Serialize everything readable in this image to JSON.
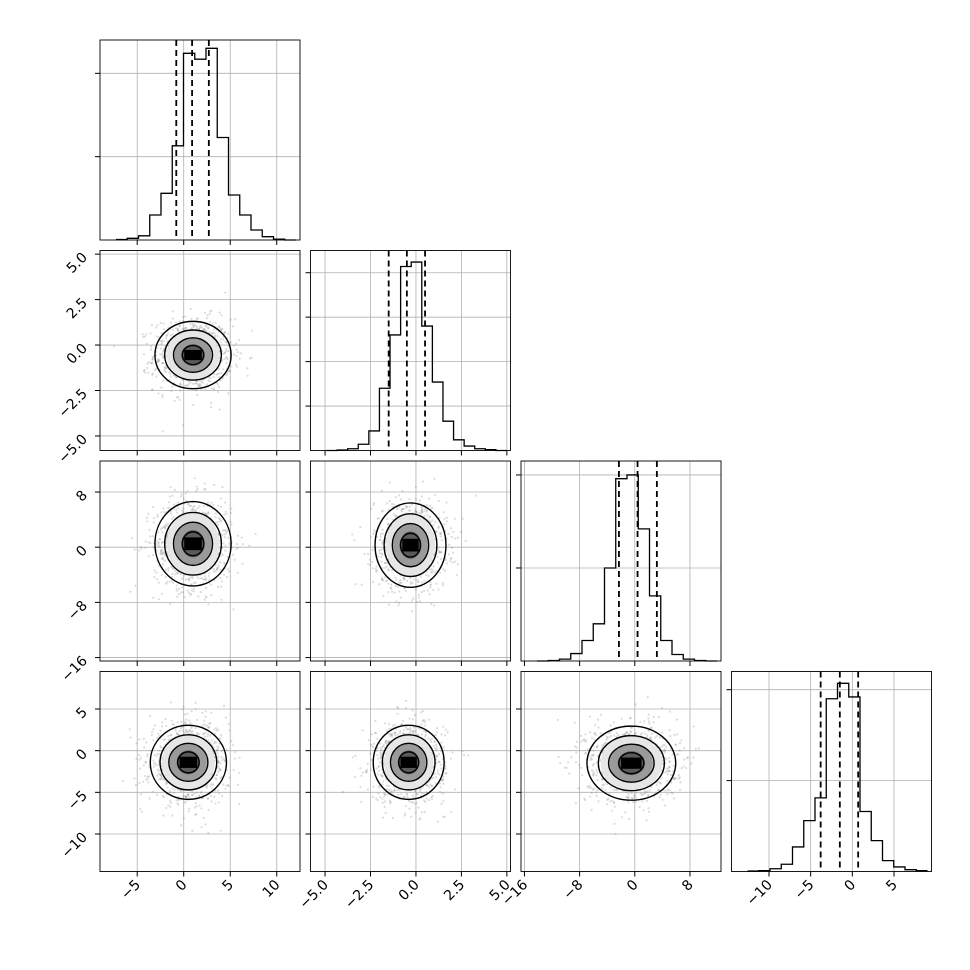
{
  "chart_data": {
    "type": "corner",
    "title": "",
    "grid": true,
    "colors": {
      "hist": "#000000",
      "quantile": "#000000",
      "points": "#808080",
      "density_dark": "#000000",
      "grid": "#b0b0b0"
    },
    "quantiles": [
      0.16,
      0.5,
      0.84
    ],
    "variables": [
      {
        "range": [
          -9.0,
          12.5
        ],
        "ticks": [
          -5,
          0,
          5,
          10
        ],
        "tick_labels": [
          "−5",
          "0",
          "5",
          "10"
        ],
        "quantile_values": [
          -0.8,
          0.9,
          2.7
        ],
        "hist_counts": [
          0.5,
          2,
          5,
          30,
          56,
          113,
          224,
          217,
          230,
          123,
          54,
          30,
          12,
          4,
          1,
          0
        ],
        "hist_ylim": [
          0,
          240
        ],
        "hist_yticks": [
          100,
          200
        ]
      },
      {
        "range": [
          -5.8,
          5.2
        ],
        "ticks": [
          -5.0,
          -2.5,
          0.0,
          2.5,
          5.0
        ],
        "tick_labels": [
          "−5.0",
          "−2.5",
          "0.0",
          "2.5",
          "5.0"
        ],
        "quantile_values": [
          -1.5,
          -0.5,
          0.5
        ],
        "hist_counts": [
          0,
          0.5,
          2,
          7,
          22,
          70,
          130,
          207,
          212,
          140,
          77,
          33,
          12,
          5,
          2,
          1,
          0
        ],
        "hist_ylim": [
          0,
          225
        ],
        "hist_yticks": [
          50,
          100,
          150,
          200
        ]
      },
      {
        "range": [
          -16.5,
          12.5
        ],
        "ticks": [
          -16,
          -8,
          0,
          8
        ],
        "tick_labels": [
          "−16",
          "−8",
          "0",
          "8"
        ],
        "quantile_values": [
          -2.3,
          0.4,
          3.2
        ],
        "hist_counts": [
          0,
          0.5,
          2,
          8,
          22,
          40,
          100,
          196,
          200,
          142,
          70,
          22,
          7,
          2,
          0.5,
          0
        ],
        "hist_ylim": [
          0,
          215
        ],
        "hist_yticks": [
          100,
          200
        ]
      },
      {
        "range": [
          -14.5,
          9.5
        ],
        "ticks": [
          -10,
          -5,
          0,
          5
        ],
        "tick_labels": [
          "−10",
          "−5",
          "0",
          "5"
        ],
        "quantile_values": [
          -3.8,
          -1.5,
          0.7
        ],
        "hist_counts": [
          0.5,
          1,
          3,
          8,
          27,
          56,
          81,
          190,
          207,
          192,
          66,
          34,
          12,
          5,
          2,
          1
        ],
        "hist_ylim": [
          0,
          220
        ],
        "hist_yticks": [
          100,
          200
        ]
      }
    ],
    "scatter_means": {
      "1,0": [
        1.0,
        -0.55
      ],
      "2,0": [
        1.0,
        0.5
      ],
      "2,1": [
        -0.3,
        0.3
      ],
      "3,0": [
        0.5,
        -1.4
      ],
      "3,1": [
        -0.4,
        -1.4
      ],
      "3,2": [
        -0.5,
        -1.5
      ]
    },
    "scatter_sd": [
      2.1,
      1.0,
      3.3,
      2.4
    ]
  }
}
